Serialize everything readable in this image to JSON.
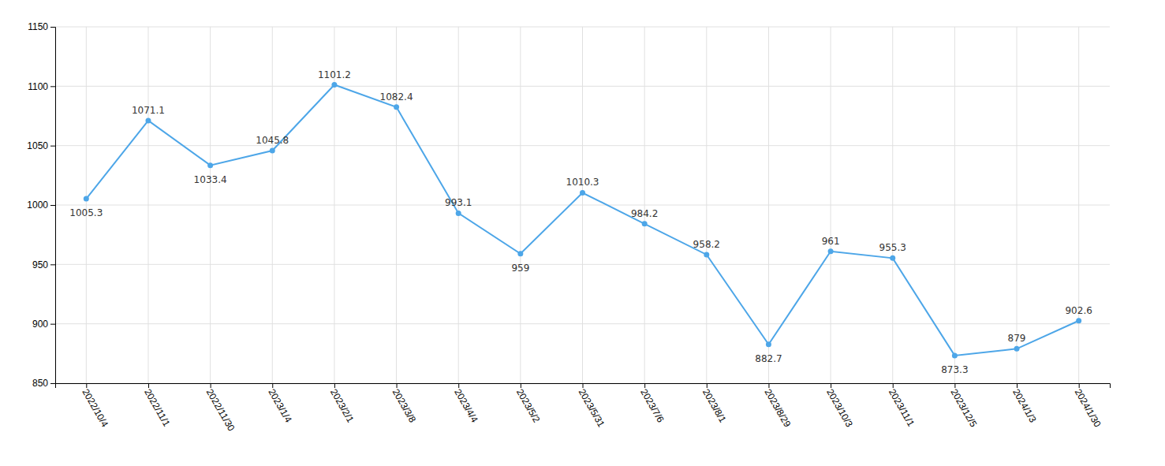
{
  "chart_data": {
    "type": "line",
    "categories": [
      "2022/10/4",
      "2022/11/1",
      "2022/11/30",
      "2023/1/4",
      "2023/2/1",
      "2023/3/8",
      "2023/4/4",
      "2023/5/2",
      "2023/5/31",
      "2023/7/6",
      "2023/8/1",
      "2023/8/29",
      "2023/10/3",
      "2023/11/1",
      "2023/12/5",
      "2024/1/3",
      "2024/1/30"
    ],
    "values": [
      1005.3,
      1071.1,
      1033.4,
      1045.8,
      1101.2,
      1082.4,
      993.1,
      959.0,
      1010.3,
      984.2,
      958.2,
      882.7,
      961.0,
      955.3,
      873.3,
      879.0,
      902.6
    ],
    "color": "#4da6e8",
    "ylim": [
      850,
      1150
    ],
    "yticks": [
      850,
      900,
      950,
      1000,
      1050,
      1100,
      1150
    ],
    "grid": true,
    "data_labels": true
  }
}
